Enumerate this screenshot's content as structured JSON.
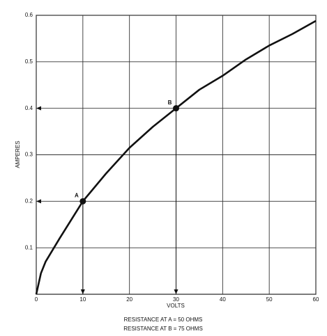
{
  "chart_data": {
    "type": "line",
    "x_label": "VOLTS",
    "y_label": "AMPERES",
    "x": [
      0,
      1,
      2,
      5,
      10,
      15,
      20,
      25,
      30,
      35,
      40,
      45,
      50,
      55,
      60
    ],
    "values": [
      0,
      0.045,
      0.07,
      0.12,
      0.2,
      0.26,
      0.315,
      0.36,
      0.4,
      0.44,
      0.47,
      0.505,
      0.535,
      0.56,
      0.588
    ],
    "color": "#111111",
    "xlim": [
      0,
      60
    ],
    "ylim": [
      0,
      0.6
    ],
    "xticks": [
      0,
      10,
      20,
      30,
      40,
      50,
      60
    ],
    "yticks": [
      0.1,
      0.2,
      0.3,
      0.4,
      0.5,
      0.6
    ],
    "grid": true,
    "points": [
      {
        "label": "A",
        "x": 10,
        "y": 0.2
      },
      {
        "label": "B",
        "x": 30,
        "y": 0.4
      }
    ],
    "notes": [
      "RESISTANCE AT A = 50 OHMS",
      "RESISTANCE AT B = 75 OHMS"
    ]
  }
}
